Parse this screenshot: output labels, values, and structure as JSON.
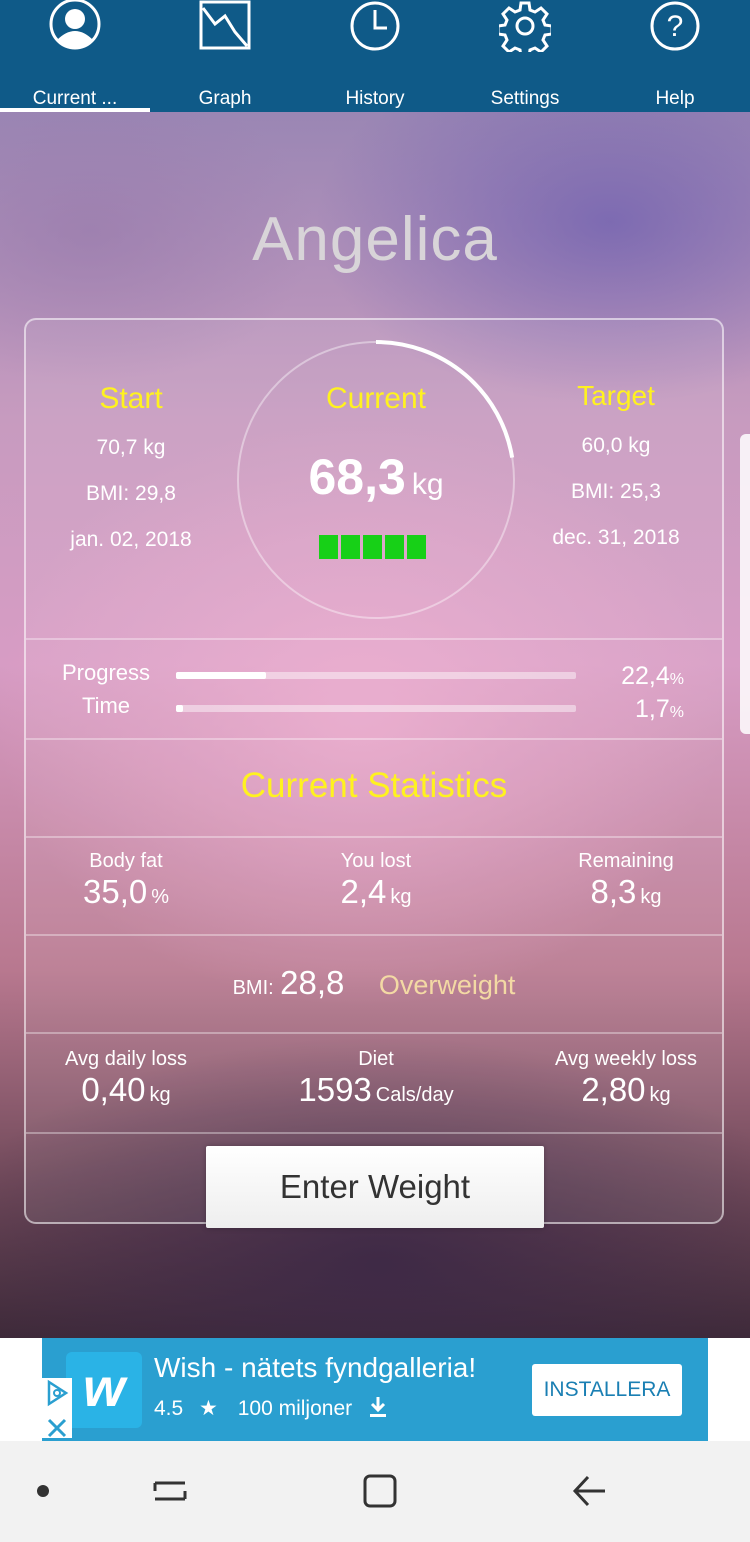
{
  "tabs": [
    {
      "label": "Current ...",
      "icon": "user-icon"
    },
    {
      "label": "Graph",
      "icon": "graph-icon"
    },
    {
      "label": "History",
      "icon": "clock-icon"
    },
    {
      "label": "Settings",
      "icon": "gear-icon"
    },
    {
      "label": "Help",
      "icon": "help-icon"
    }
  ],
  "profile": {
    "name": "Angelica"
  },
  "start": {
    "label": "Start",
    "weight": "70,7 kg",
    "bmi": "BMI: 29,8",
    "date": "jan. 02, 2018"
  },
  "current": {
    "label": "Current",
    "value": "68,3",
    "unit": "kg",
    "ring_progress": 0.224,
    "blocks": 5
  },
  "target": {
    "label": "Target",
    "weight": "60,0 kg",
    "bmi": "BMI: 25,3",
    "date": "dec. 31, 2018"
  },
  "progress": {
    "label": "Progress",
    "value": "22,4",
    "unit": "%",
    "fraction": 0.224
  },
  "time": {
    "label": "Time",
    "value": "1,7",
    "unit": "%",
    "fraction": 0.017
  },
  "stats": {
    "title": "Current Statistics",
    "body_fat": {
      "label": "Body fat",
      "value": "35,0",
      "unit": "%"
    },
    "you_lost": {
      "label": "You lost",
      "value": "2,4",
      "unit": "kg"
    },
    "remaining": {
      "label": "Remaining",
      "value": "8,3",
      "unit": "kg"
    },
    "bmi": {
      "label": "BMI:",
      "value": "28,8",
      "category": "Overweight"
    },
    "avg_daily": {
      "label": "Avg daily loss",
      "value": "0,40",
      "unit": "kg"
    },
    "diet": {
      "label": "Diet",
      "value": "1593",
      "unit": "Cals/day"
    },
    "avg_weekly": {
      "label": "Avg weekly loss",
      "value": "2,80",
      "unit": "kg"
    }
  },
  "actions": {
    "enter_weight": "Enter Weight"
  },
  "ad": {
    "title": "Wish - nätets fyndgalleria!",
    "rating": "4.5",
    "downloads": "100 miljoner",
    "install": "INSTALLERA",
    "logo_text": "w"
  },
  "colors": {
    "accent": "#fff21f",
    "tabbar": "#0f5a88",
    "ad": "#2a9fd0",
    "progress_green": "#17d017",
    "overweight": "#f3d9a4"
  }
}
